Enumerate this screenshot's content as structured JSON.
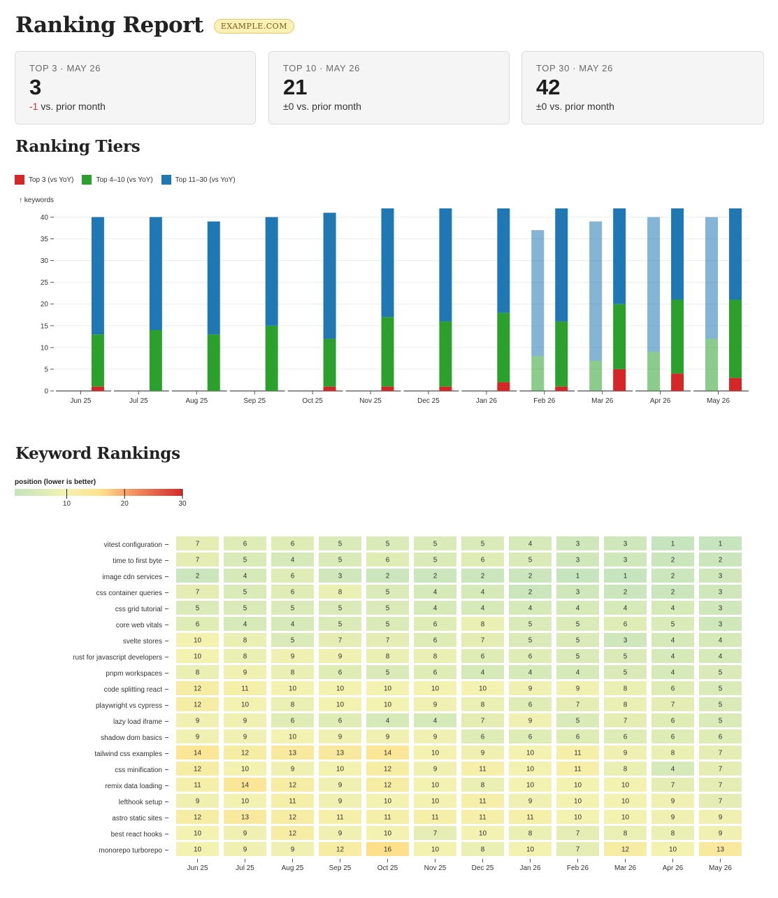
{
  "header": {
    "title": "Ranking Report",
    "site_badge": "EXAMPLE.COM"
  },
  "summary_cards": [
    {
      "label": "TOP 3 · MAY 26",
      "value": "3",
      "delta": "-1",
      "delta_suffix": " vs. prior month",
      "delta_color": "#d0342c"
    },
    {
      "label": "TOP 10 · MAY 26",
      "value": "21",
      "delta": "±0",
      "delta_suffix": " vs. prior month",
      "delta_color": "#333333"
    },
    {
      "label": "TOP 30 · MAY 26",
      "value": "42",
      "delta": "±0",
      "delta_suffix": " vs. prior month",
      "delta_color": "#333333"
    }
  ],
  "tiers_section": {
    "title": "Ranking Tiers"
  },
  "legend": [
    {
      "label": "Top 3 (vs YoY)",
      "color": "#d62728"
    },
    {
      "label": "Top 4–10 (vs YoY)",
      "color": "#2ca02c"
    },
    {
      "label": "Top 11–30 (vs YoY)",
      "color": "#1f77b4"
    }
  ],
  "heatmap_section": {
    "title": "Keyword Rankings"
  },
  "chart_data": [
    {
      "type": "bar",
      "stacked": true,
      "ylabel": "↑ keywords",
      "ylim": [
        0,
        42
      ],
      "yticks": [
        0,
        5,
        10,
        15,
        20,
        25,
        30,
        35,
        40
      ],
      "grid": true,
      "categories": [
        "Jun 25",
        "Jul 25",
        "Aug 25",
        "Sep 25",
        "Oct 25",
        "Nov 25",
        "Dec 25",
        "Jan 26",
        "Feb 26",
        "Mar 26",
        "Apr 26",
        "May 26"
      ],
      "series": [
        {
          "name": "Top 3",
          "color": "#d62728",
          "values": [
            1,
            0,
            0,
            0,
            1,
            1,
            1,
            2,
            1,
            5,
            4,
            3
          ]
        },
        {
          "name": "Top 4–10",
          "color": "#2ca02c",
          "values": [
            12,
            14,
            13,
            15,
            11,
            16,
            15,
            16,
            15,
            15,
            17,
            18
          ]
        },
        {
          "name": "Top 11–30",
          "color": "#1f77b4",
          "values": [
            27,
            26,
            26,
            25,
            29,
            25,
            26,
            24,
            26,
            22,
            21,
            21
          ]
        }
      ],
      "yoy_series": [
        {
          "name": "Top 3",
          "color": "#d62728",
          "values": [
            null,
            null,
            null,
            null,
            null,
            null,
            null,
            null,
            0,
            0,
            0,
            0
          ]
        },
        {
          "name": "Top 4–10",
          "color": "#2ca02c",
          "values": [
            null,
            null,
            null,
            null,
            null,
            null,
            null,
            null,
            8,
            7,
            9,
            12
          ]
        },
        {
          "name": "Top 11–30",
          "color": "#1f77b4",
          "values": [
            null,
            null,
            null,
            null,
            null,
            null,
            null,
            null,
            29,
            32,
            31,
            28
          ]
        }
      ]
    },
    {
      "type": "heatmap",
      "colorbar_label": "position (lower is better)",
      "colorbar_ticks": [
        10,
        20,
        30
      ],
      "value_range": [
        1,
        30
      ],
      "x": [
        "Jun 25",
        "Jul 25",
        "Aug 25",
        "Sep 25",
        "Oct 25",
        "Nov 25",
        "Dec 25",
        "Jan 26",
        "Feb 26",
        "Mar 26",
        "Apr 26",
        "May 26"
      ],
      "y": [
        "vitest configuration",
        "time to first byte",
        "image cdn services",
        "css container queries",
        "css grid tutorial",
        "core web vitals",
        "svelte stores",
        "rust for javascript developers",
        "pnpm workspaces",
        "code splitting react",
        "playwright vs cypress",
        "lazy load iframe",
        "shadow dom basics",
        "tailwind css examples",
        "css minification",
        "remix data loading",
        "lefthook setup",
        "astro static sites",
        "best react hooks",
        "monorepo turborepo"
      ],
      "values": [
        [
          7,
          6,
          6,
          5,
          5,
          5,
          5,
          4,
          3,
          3,
          1,
          1
        ],
        [
          7,
          5,
          4,
          5,
          6,
          5,
          6,
          5,
          3,
          3,
          2,
          2
        ],
        [
          2,
          4,
          6,
          3,
          2,
          2,
          2,
          2,
          1,
          1,
          2,
          3
        ],
        [
          7,
          5,
          6,
          8,
          5,
          4,
          4,
          2,
          3,
          2,
          2,
          3
        ],
        [
          5,
          5,
          5,
          5,
          5,
          4,
          4,
          4,
          4,
          4,
          4,
          3
        ],
        [
          6,
          4,
          4,
          5,
          5,
          6,
          8,
          5,
          5,
          6,
          5,
          3
        ],
        [
          10,
          8,
          5,
          7,
          7,
          6,
          7,
          5,
          5,
          3,
          4,
          4
        ],
        [
          10,
          8,
          9,
          9,
          8,
          8,
          6,
          6,
          5,
          5,
          4,
          4
        ],
        [
          8,
          9,
          8,
          6,
          5,
          6,
          4,
          4,
          4,
          5,
          4,
          5
        ],
        [
          12,
          11,
          10,
          10,
          10,
          10,
          10,
          9,
          9,
          8,
          6,
          5
        ],
        [
          12,
          10,
          8,
          10,
          10,
          9,
          8,
          6,
          7,
          8,
          7,
          5
        ],
        [
          9,
          9,
          6,
          6,
          4,
          4,
          7,
          9,
          5,
          7,
          6,
          5
        ],
        [
          9,
          9,
          10,
          9,
          9,
          9,
          6,
          6,
          6,
          6,
          6,
          6
        ],
        [
          14,
          12,
          13,
          13,
          14,
          10,
          9,
          10,
          11,
          9,
          8,
          7
        ],
        [
          12,
          10,
          9,
          10,
          12,
          9,
          11,
          10,
          11,
          8,
          4,
          7
        ],
        [
          11,
          14,
          12,
          9,
          12,
          10,
          8,
          10,
          10,
          10,
          7,
          7
        ],
        [
          9,
          10,
          11,
          9,
          10,
          10,
          11,
          9,
          10,
          10,
          9,
          7
        ],
        [
          12,
          13,
          12,
          11,
          11,
          11,
          11,
          11,
          10,
          10,
          9,
          9
        ],
        [
          10,
          9,
          12,
          9,
          10,
          7,
          10,
          8,
          7,
          8,
          8,
          9
        ],
        [
          10,
          9,
          9,
          12,
          16,
          10,
          8,
          10,
          7,
          12,
          10,
          13
        ]
      ]
    }
  ]
}
